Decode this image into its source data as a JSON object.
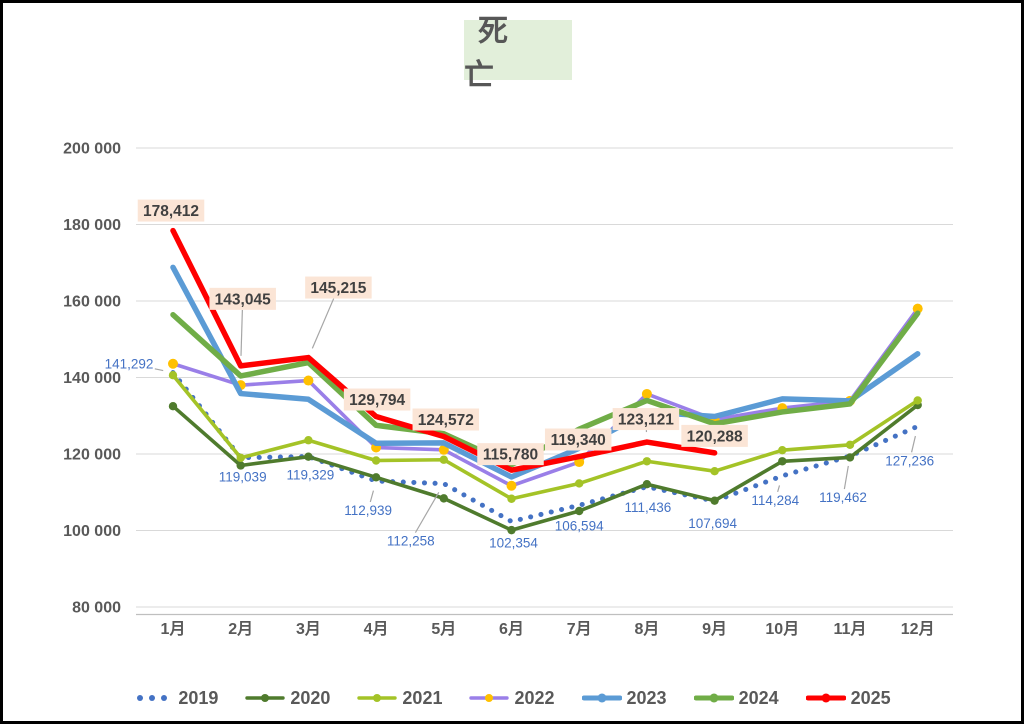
{
  "title": "死　亡",
  "y_axis": {
    "tick_labels": [
      "200 000",
      "180 000",
      "160 000",
      "140 000",
      "120 000",
      "100 000",
      "80 000"
    ],
    "tick_values": [
      200000,
      180000,
      160000,
      140000,
      120000,
      100000,
      80000
    ]
  },
  "x_axis": {
    "labels": [
      "1月",
      "2月",
      "3月",
      "4月",
      "5月",
      "6月",
      "7月",
      "8月",
      "9月",
      "10月",
      "11月",
      "12月"
    ]
  },
  "colors": {
    "gridline": "#D9D9D9",
    "axis_line": "#BFBFBF",
    "axis_text": "#595959",
    "leader_line": "#A6A6A6",
    "label_box_bg": "#FBE5D6",
    "label_box_text": "#404040",
    "label_2019_text": "#4472C4",
    "title_bg": "#E2EFDA"
  },
  "legend": [
    {
      "label": "2019",
      "color": "#4472C4",
      "marker_color": "#4472C4",
      "type": "dotted"
    },
    {
      "label": "2020",
      "color": "#4F7B2D",
      "marker_color": "#4F7B2D",
      "type": "line-marker"
    },
    {
      "label": "2021",
      "color": "#A4C327",
      "marker_color": "#A4C327",
      "type": "line-marker"
    },
    {
      "label": "2022",
      "color": "#9A7FE8",
      "marker_color": "#FFC000",
      "type": "line-marker"
    },
    {
      "label": "2023",
      "color": "#5B9BD5",
      "marker_color": "#5B9BD5",
      "type": "thick-line"
    },
    {
      "label": "2024",
      "color": "#70AD47",
      "marker_color": "#70AD47",
      "type": "thick-line"
    },
    {
      "label": "2025",
      "color": "#FF0000",
      "marker_color": "#FF0000",
      "type": "thick-line"
    }
  ],
  "chart_data": {
    "type": "line",
    "title": "死亡",
    "categories": [
      "1月",
      "2月",
      "3月",
      "4月",
      "5月",
      "6月",
      "7月",
      "8月",
      "9月",
      "10月",
      "11月",
      "12月"
    ],
    "ylim": [
      80000,
      200000
    ],
    "ytick_step": 20000,
    "grid": true,
    "legend_position": "bottom",
    "series": [
      {
        "name": "2019",
        "color": "#4472C4",
        "style": "dotted",
        "width": 5,
        "values": [
          141292,
          119039,
          119329,
          112939,
          112258,
          102354,
          106594,
          111436,
          107694,
          114284,
          119462,
          127236
        ],
        "labels": [
          "141,292",
          "119,039",
          "119,329",
          "112,939",
          "112,258",
          "102,354",
          "106,594",
          "111,436",
          "107,694",
          "114,284",
          "119,462",
          "127,236"
        ],
        "label_style": "plain"
      },
      {
        "name": "2020",
        "color": "#4F7B2D",
        "style": "solid",
        "width": 3.6,
        "marker_r": 4.2,
        "values": [
          132500,
          117000,
          119300,
          113900,
          108400,
          100100,
          105100,
          112100,
          107800,
          118100,
          119100,
          132800
        ]
      },
      {
        "name": "2021",
        "color": "#A4C327",
        "style": "solid",
        "width": 3.6,
        "marker_r": 4.2,
        "values": [
          140600,
          119000,
          123600,
          118300,
          118500,
          108300,
          112300,
          118100,
          115500,
          121000,
          122400,
          134000
        ]
      },
      {
        "name": "2022",
        "color": "#9A7FE8",
        "style": "solid",
        "width": 3.6,
        "marker_r": 5,
        "marker_color": "#FFC000",
        "values": [
          143600,
          138000,
          139200,
          121700,
          121100,
          111700,
          117900,
          135700,
          129000,
          132000,
          133900,
          158000
        ]
      },
      {
        "name": "2023",
        "color": "#5B9BD5",
        "style": "solid",
        "width": 5.5,
        "values": [
          168800,
          135800,
          134300,
          122800,
          122900,
          114000,
          121500,
          131000,
          129800,
          134400,
          133900,
          146200
        ]
      },
      {
        "name": "2024",
        "color": "#70AD47",
        "style": "solid",
        "width": 5.5,
        "values": [
          156400,
          140400,
          143900,
          127500,
          125300,
          117200,
          126500,
          134000,
          127900,
          131000,
          133100,
          156800
        ]
      },
      {
        "name": "2025",
        "color": "#FF0000",
        "style": "solid",
        "width": 5.5,
        "values": [
          178412,
          143045,
          145215,
          129794,
          124572,
          115780,
          119340,
          123121,
          120288
        ],
        "labels": [
          "178,412",
          "143,045",
          "145,215",
          "129,794",
          "124,572",
          "115,780",
          "119,340",
          "123,121",
          "120,288"
        ],
        "label_style": "box"
      }
    ]
  }
}
